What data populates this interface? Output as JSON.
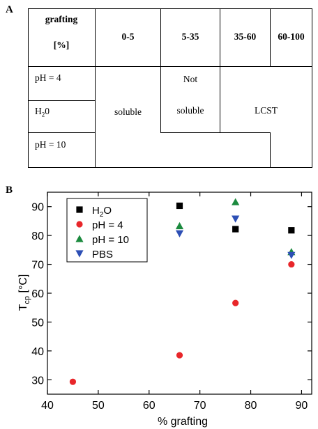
{
  "panel_a": {
    "label": "A",
    "header": {
      "grafting_line1": "grafting",
      "grafting_line2": "[%]",
      "ranges": [
        "0-5",
        "5-35",
        "35-60",
        "60-100"
      ]
    },
    "rows": {
      "ph4": "pH = 4",
      "h2o_main": "H",
      "h2o_sub": "2",
      "h2o_tail": "0",
      "ph10": "pH = 10"
    },
    "regions": {
      "soluble": "soluble",
      "not_soluble_line1": "Not",
      "not_soluble_line2": "soluble",
      "lcst": "LCST"
    }
  },
  "panel_b": {
    "label": "B"
  },
  "chart_data": {
    "type": "scatter",
    "xlabel": "% grafting",
    "ylabel_main": "T",
    "ylabel_sub": "cp",
    "ylabel_unit": " [°C]",
    "xlim": [
      40,
      92
    ],
    "ylim": [
      25,
      95
    ],
    "xticks": [
      40,
      50,
      60,
      70,
      80,
      90
    ],
    "yticks": [
      30,
      40,
      50,
      60,
      70,
      80,
      90
    ],
    "legend_position": "top-left",
    "series": [
      {
        "name_main": "H",
        "name_sub": "2",
        "name_tail": "O",
        "marker": "square",
        "color": "#000000",
        "x": [
          66,
          77,
          88
        ],
        "y": [
          90.3,
          82.2,
          81.8
        ]
      },
      {
        "name_main": "pH = 4",
        "name_sub": "",
        "name_tail": "",
        "marker": "circle",
        "color": "#e8262a",
        "x": [
          45,
          66,
          77,
          88
        ],
        "y": [
          29.3,
          38.5,
          56.6,
          70.0
        ]
      },
      {
        "name_main": "pH = 10",
        "name_sub": "",
        "name_tail": "",
        "marker": "triangle-up",
        "color": "#1b8a3e",
        "x": [
          66,
          77,
          88
        ],
        "y": [
          83.3,
          91.6,
          74.3
        ]
      },
      {
        "name_main": "PBS",
        "name_sub": "",
        "name_tail": "",
        "marker": "triangle-down",
        "color": "#2d4fb5",
        "x": [
          66,
          77,
          88
        ],
        "y": [
          80.7,
          85.8,
          73.2
        ]
      }
    ]
  }
}
